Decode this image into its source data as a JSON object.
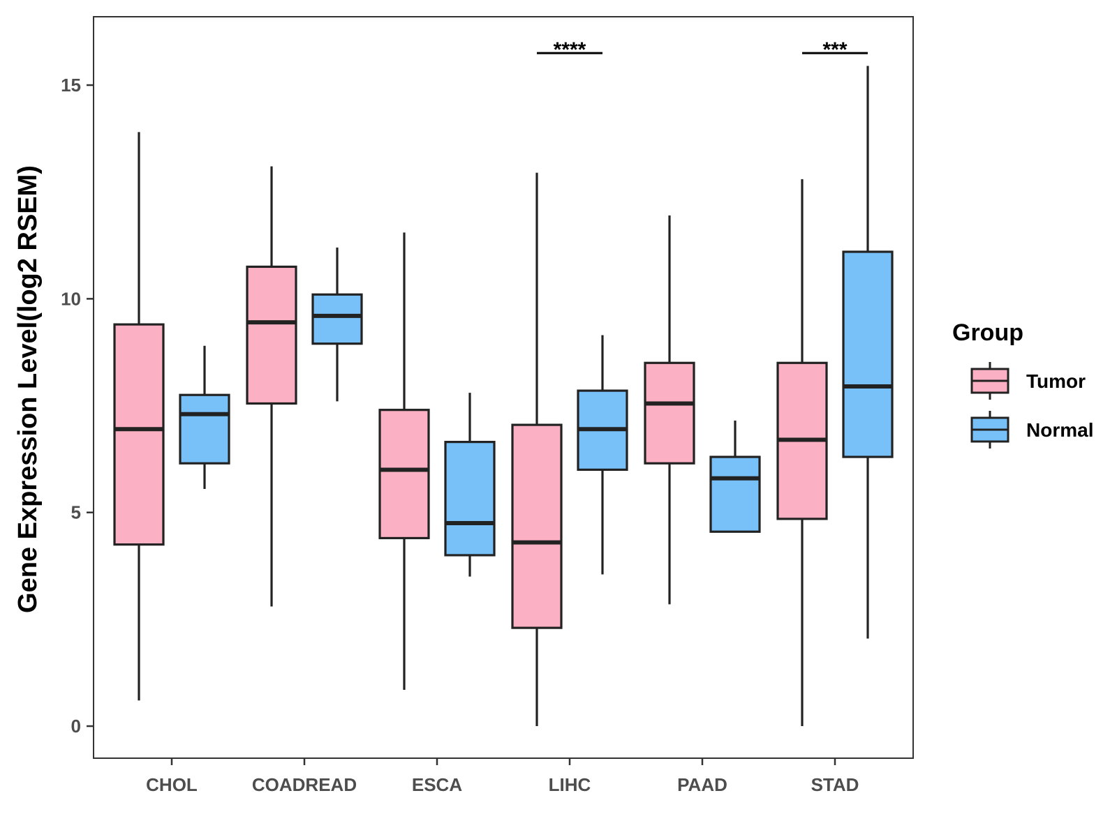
{
  "chart_data": {
    "type": "boxplot",
    "title": "",
    "xlabel": "",
    "ylabel": "Gene Expression Level(log2 RSEM)",
    "ylim": [
      -0.75,
      16.6
    ],
    "yticks": [
      0,
      5,
      10,
      15
    ],
    "ytick_labels": [
      "0",
      "5",
      "10",
      "15"
    ],
    "categories": [
      "CHOL",
      "COADREAD",
      "ESCA",
      "LIHC",
      "PAAD",
      "STAD"
    ],
    "legend": {
      "title": "Group",
      "placement": "right",
      "entries": [
        "Tumor",
        "Normal"
      ]
    },
    "colors": {
      "Tumor": "#FBB1C3",
      "Normal": "#78C1F8",
      "outline": "#222222",
      "panel_border": "#333333"
    },
    "series": [
      {
        "name": "Tumor",
        "boxes": [
          {
            "min": 0.6,
            "q1": 4.25,
            "median": 6.95,
            "q3": 9.4,
            "max": 13.9
          },
          {
            "min": 2.8,
            "q1": 7.55,
            "median": 9.45,
            "q3": 10.75,
            "max": 13.1
          },
          {
            "min": 0.85,
            "q1": 4.4,
            "median": 6.0,
            "q3": 7.4,
            "max": 11.55
          },
          {
            "min": 0.0,
            "q1": 2.3,
            "median": 4.3,
            "q3": 7.05,
            "max": 12.95
          },
          {
            "min": 2.85,
            "q1": 6.15,
            "median": 7.55,
            "q3": 8.5,
            "max": 11.95
          },
          {
            "min": 0.0,
            "q1": 4.85,
            "median": 6.7,
            "q3": 8.5,
            "max": 12.8
          }
        ]
      },
      {
        "name": "Normal",
        "boxes": [
          {
            "min": 5.55,
            "q1": 6.15,
            "median": 7.3,
            "q3": 7.75,
            "max": 8.9
          },
          {
            "min": 7.6,
            "q1": 8.95,
            "median": 9.6,
            "q3": 10.1,
            "max": 11.2
          },
          {
            "min": 3.5,
            "q1": 4.0,
            "median": 4.75,
            "q3": 6.65,
            "max": 7.8
          },
          {
            "min": 3.55,
            "q1": 6.0,
            "median": 6.95,
            "q3": 7.85,
            "max": 9.15
          },
          {
            "min": 4.55,
            "q1": 4.55,
            "median": 5.8,
            "q3": 6.3,
            "max": 7.15
          },
          {
            "min": 2.05,
            "q1": 6.3,
            "median": 7.95,
            "q3": 11.1,
            "max": 15.45
          }
        ]
      }
    ],
    "annotations": [
      {
        "category": "LIHC",
        "label": "****",
        "y": 15.75
      },
      {
        "category": "STAD",
        "label": "***",
        "y": 15.75
      }
    ]
  }
}
